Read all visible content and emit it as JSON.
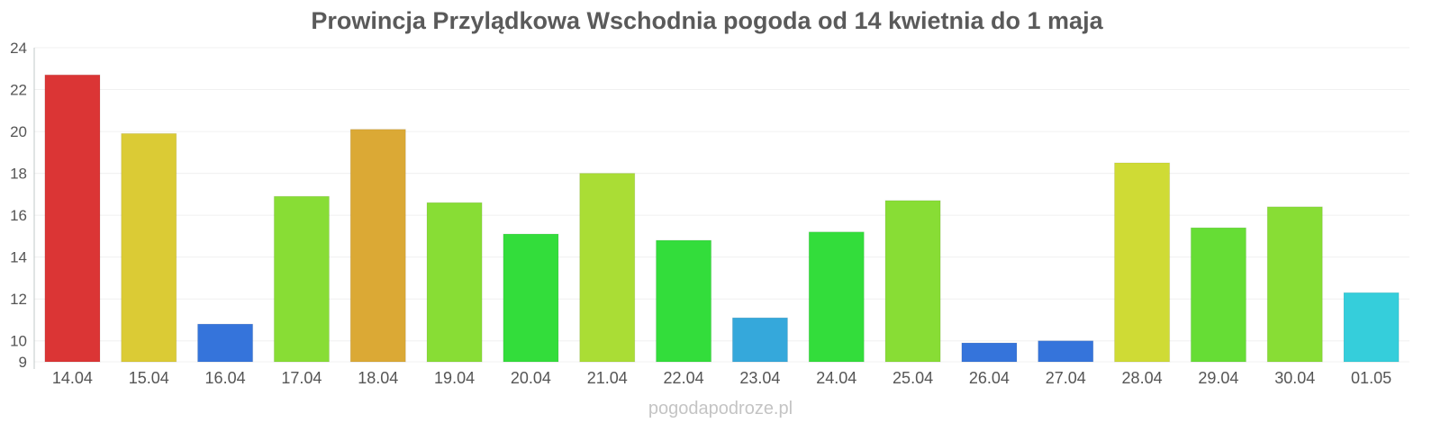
{
  "chart_data": {
    "type": "bar",
    "title": "Prowincja Przylądkowa Wschodnia pogoda od 14 kwietnia do 1 maja",
    "xlabel": "",
    "ylabel": "",
    "categories": [
      "14.04",
      "15.04",
      "16.04",
      "17.04",
      "18.04",
      "19.04",
      "20.04",
      "21.04",
      "22.04",
      "23.04",
      "24.04",
      "25.04",
      "26.04",
      "27.04",
      "28.04",
      "29.04",
      "30.04",
      "01.05"
    ],
    "values": [
      22.7,
      19.9,
      10.8,
      16.9,
      20.1,
      16.6,
      15.1,
      18.0,
      14.8,
      11.1,
      15.2,
      16.7,
      9.9,
      10.0,
      18.5,
      15.4,
      16.4,
      12.3
    ],
    "colors": [
      "#db3535",
      "#dbcb35",
      "#3574db",
      "#88dd35",
      "#dba935",
      "#88dd35",
      "#33dd3b",
      "#aadd35",
      "#33dd3b",
      "#35a8db",
      "#33dd3b",
      "#88dd35",
      "#3574db",
      "#3574db",
      "#cfdb35",
      "#66dd35",
      "#88dd35",
      "#35cedb"
    ],
    "ylim": [
      9,
      24
    ],
    "yticks": [
      9,
      10,
      12,
      14,
      16,
      18,
      20,
      22,
      24
    ],
    "grid": true,
    "legend": "none"
  },
  "watermark": "pogodapodroze.pl"
}
